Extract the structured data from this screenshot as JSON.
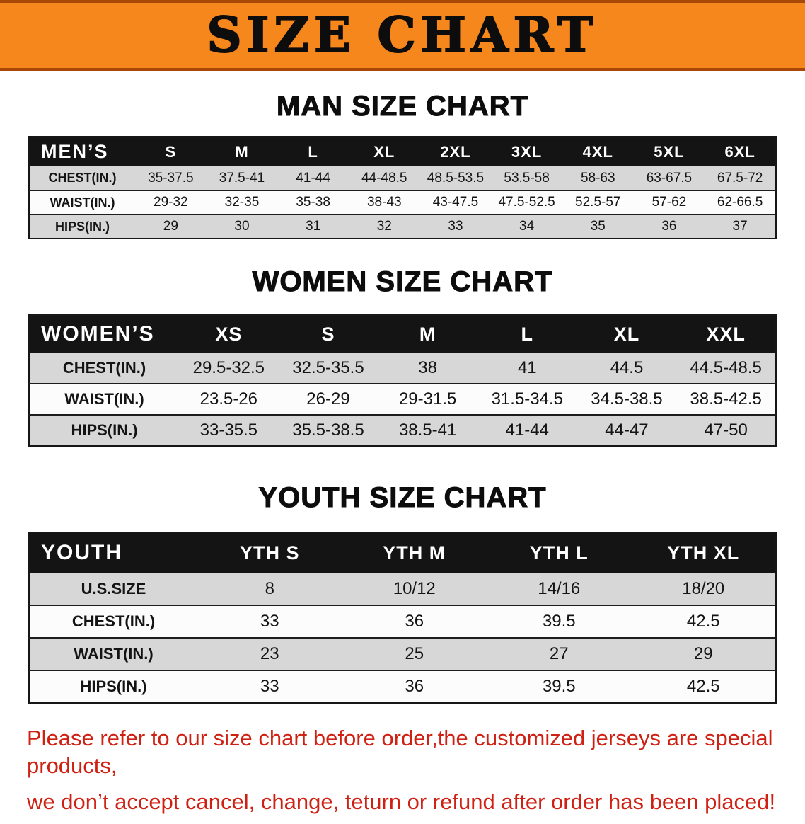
{
  "banner": {
    "title": "SIZE CHART"
  },
  "colors": {
    "banner_bg": "#f6871d",
    "banner_border": "#a84708",
    "header_bg": "#141414",
    "row_gray": "#d7d7d7",
    "row_white": "#fcfcfc",
    "disclaimer_red": "#cf2113",
    "ink": "#0d0d0d"
  },
  "sections": [
    {
      "heading": "MAN SIZE CHART",
      "table": {
        "header_label": "MEN’S",
        "columns": [
          "S",
          "M",
          "L",
          "XL",
          "2XL",
          "3XL",
          "4XL",
          "5XL",
          "6XL"
        ],
        "rows": [
          {
            "label": "CHEST(IN.)",
            "values": [
              "35-37.5",
              "37.5-41",
              "41-44",
              "44-48.5",
              "48.5-53.5",
              "53.5-58",
              "58-63",
              "63-67.5",
              "67.5-72"
            ]
          },
          {
            "label": "WAIST(IN.)",
            "values": [
              "29-32",
              "32-35",
              "35-38",
              "38-43",
              "43-47.5",
              "47.5-52.5",
              "52.5-57",
              "57-62",
              "62-66.5"
            ]
          },
          {
            "label": "HIPS(IN.)",
            "values": [
              "29",
              "30",
              "31",
              "32",
              "33",
              "34",
              "35",
              "36",
              "37"
            ]
          }
        ]
      }
    },
    {
      "heading": "WOMEN SIZE CHART",
      "table": {
        "header_label": "WOMEN’S",
        "columns": [
          "XS",
          "S",
          "M",
          "L",
          "XL",
          "XXL"
        ],
        "rows": [
          {
            "label": "CHEST(IN.)",
            "values": [
              "29.5-32.5",
              "32.5-35.5",
              "38",
              "41",
              "44.5",
              "44.5-48.5"
            ]
          },
          {
            "label": "WAIST(IN.)",
            "values": [
              "23.5-26",
              "26-29",
              "29-31.5",
              "31.5-34.5",
              "34.5-38.5",
              "38.5-42.5"
            ]
          },
          {
            "label": "HIPS(IN.)",
            "values": [
              "33-35.5",
              "35.5-38.5",
              "38.5-41",
              "41-44",
              "44-47",
              "47-50"
            ]
          }
        ]
      }
    },
    {
      "heading": "YOUTH SIZE CHART",
      "table": {
        "header_label": "YOUTH",
        "columns": [
          "YTH S",
          "YTH M",
          "YTH L",
          "YTH XL"
        ],
        "rows": [
          {
            "label": "U.S.SIZE",
            "values": [
              "8",
              "10/12",
              "14/16",
              "18/20"
            ]
          },
          {
            "label": "CHEST(IN.)",
            "values": [
              "33",
              "36",
              "39.5",
              "42.5"
            ]
          },
          {
            "label": "WAIST(IN.)",
            "values": [
              "23",
              "25",
              "27",
              "29"
            ]
          },
          {
            "label": "HIPS(IN.)",
            "values": [
              "33",
              "36",
              "39.5",
              "42.5"
            ]
          }
        ]
      }
    }
  ],
  "disclaimer": {
    "line1": "Please refer to our size chart before order,the customized jerseys are special products,",
    "line2": "we don’t accept cancel, change, teturn or refund after order has been placed!"
  }
}
